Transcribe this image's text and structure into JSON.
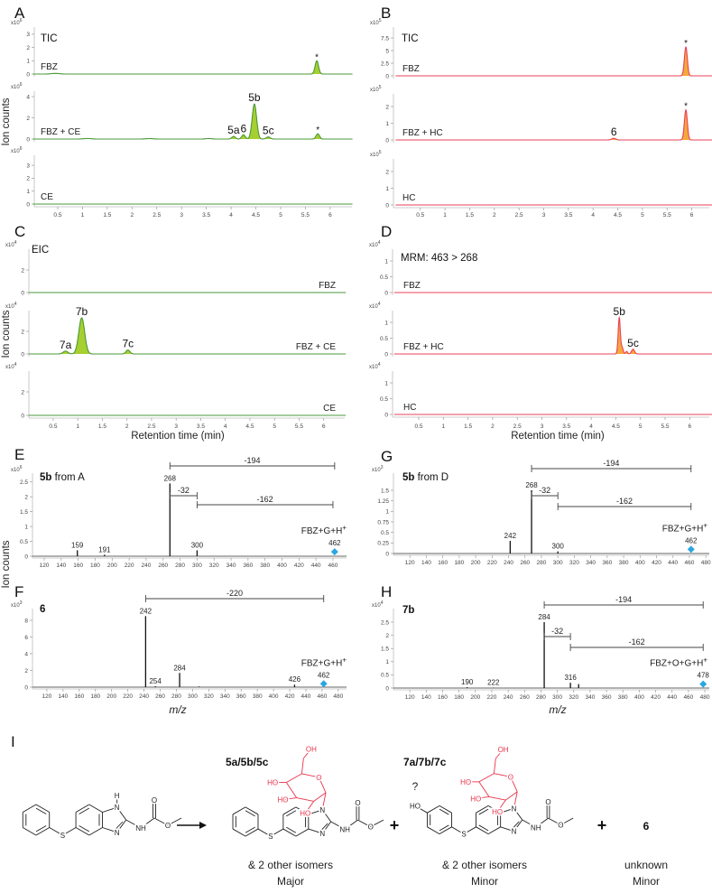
{
  "chart_data": [
    {
      "panel": "A",
      "type": "line",
      "title": "TIC",
      "xlabel": "",
      "ylabel": "Ion counts",
      "xlim": [
        0,
        6.45
      ],
      "xticks": [
        0.5,
        1,
        1.5,
        2,
        2.5,
        3,
        3.5,
        4,
        4.5,
        5,
        5.5,
        6
      ],
      "colors": {
        "line": "#4a9a3a",
        "fill": "#a6cf2f"
      },
      "traces": [
        {
          "name": "FBZ",
          "scale": "x10",
          "exp": "6",
          "yticks": [
            0,
            1,
            2,
            3
          ],
          "peaks": [
            {
              "rt": 0.45,
              "h": 0.05,
              "w": 0.08
            },
            {
              "rt": 5.73,
              "h": 1.0,
              "w": 0.035,
              "label": "*"
            }
          ]
        },
        {
          "name": "FBZ + CE",
          "scale": "x10",
          "exp": "6",
          "yticks": [
            0,
            2,
            4
          ],
          "peaks": [
            {
              "rt": 1.1,
              "h": 0.05,
              "w": 0.08
            },
            {
              "rt": 2.35,
              "h": 0.04,
              "w": 0.08
            },
            {
              "rt": 3.55,
              "h": 0.05,
              "w": 0.06
            },
            {
              "rt": 4.05,
              "h": 0.25,
              "w": 0.035,
              "label": "5a"
            },
            {
              "rt": 4.25,
              "h": 0.4,
              "w": 0.035,
              "label": "6"
            },
            {
              "rt": 4.47,
              "h": 3.3,
              "w": 0.045,
              "label": "5b"
            },
            {
              "rt": 4.75,
              "h": 0.2,
              "w": 0.04,
              "label": "5c"
            },
            {
              "rt": 5.75,
              "h": 0.5,
              "w": 0.035,
              "label": "*"
            }
          ]
        },
        {
          "name": "CE",
          "scale": "x10",
          "exp": "6",
          "yticks": [
            0,
            1,
            2,
            3
          ],
          "peaks": []
        }
      ]
    },
    {
      "panel": "B",
      "type": "line",
      "title": "TIC",
      "xlabel": "",
      "ylabel": "",
      "xlim": [
        0,
        6.45
      ],
      "xticks": [
        0.5,
        1,
        1.5,
        2,
        2.5,
        3,
        3.5,
        4,
        4.5,
        5,
        5.5,
        6
      ],
      "colors": {
        "line": "#e8405a",
        "fill": "#f5a83a"
      },
      "traces": [
        {
          "name": "FBZ",
          "scale": "x10",
          "exp": "5",
          "yticks": [
            0,
            2.5,
            5,
            7.5
          ],
          "peaks": [
            {
              "rt": 5.88,
              "h": 5.7,
              "w": 0.03,
              "label": "*"
            }
          ]
        },
        {
          "name": "FBZ + HC",
          "scale": "x10",
          "exp": "5",
          "yticks": [
            0,
            1,
            2
          ],
          "peaks": [
            {
              "rt": 4.42,
              "h": 0.1,
              "w": 0.04,
              "label": "6"
            },
            {
              "rt": 5.88,
              "h": 1.8,
              "w": 0.03,
              "label": "*"
            }
          ]
        },
        {
          "name": "HC",
          "scale": "x10",
          "exp": "5",
          "yticks": [
            0,
            1,
            2
          ],
          "peaks": []
        }
      ]
    },
    {
      "panel": "C",
      "type": "line",
      "title": "EIC",
      "xlabel": "Retention time (min)",
      "ylabel": "Ion counts",
      "xlim": [
        0,
        6.45
      ],
      "xticks": [
        0.5,
        1,
        1.5,
        2,
        2.5,
        3,
        3.5,
        4,
        4.5,
        5,
        5.5,
        6
      ],
      "colors": {
        "line": "#4a9a3a",
        "fill": "#a6cf2f"
      },
      "traces": [
        {
          "name": "FBZ",
          "scale": "x10",
          "exp": "4",
          "yticks": [
            0,
            2
          ],
          "peaks": []
        },
        {
          "name": "FBZ + CE",
          "scale": "x10",
          "exp": "4",
          "yticks": [
            0,
            2
          ],
          "peaks": [
            {
              "rt": 0.75,
              "h": 0.25,
              "w": 0.05,
              "label": "7a"
            },
            {
              "rt": 1.08,
              "h": 3.2,
              "w": 0.06,
              "label": "7b"
            },
            {
              "rt": 2.02,
              "h": 0.35,
              "w": 0.04,
              "label": "7c"
            }
          ]
        },
        {
          "name": "CE",
          "scale": "x10",
          "exp": "4",
          "yticks": [
            0,
            2
          ],
          "peaks": []
        }
      ]
    },
    {
      "panel": "D",
      "type": "line",
      "title": "MRM: 463 > 268",
      "xlabel": "Retention time (min)",
      "ylabel": "",
      "xlim": [
        0,
        6.45
      ],
      "xticks": [
        0.5,
        1,
        1.5,
        2,
        2.5,
        3,
        3.5,
        4,
        4.5,
        5,
        5.5,
        6
      ],
      "colors": {
        "line": "#e8405a",
        "fill": "#f5a83a"
      },
      "traces": [
        {
          "name": "FBZ",
          "scale": "x10",
          "exp": "4",
          "yticks": [
            0,
            0.5,
            1
          ],
          "peaks": []
        },
        {
          "name": "FBZ + HC",
          "scale": "x10",
          "exp": "4",
          "yticks": [
            0,
            0.5,
            1
          ],
          "peaks": [
            {
              "rt": 4.57,
              "h": 1.15,
              "w": 0.022,
              "label": "5b"
            },
            {
              "rt": 4.63,
              "h": 0.2,
              "w": 0.02
            },
            {
              "rt": 4.72,
              "h": 0.08,
              "w": 0.02
            },
            {
              "rt": 4.85,
              "h": 0.15,
              "w": 0.03,
              "label": "5c"
            }
          ]
        },
        {
          "name": "HC",
          "scale": "x10",
          "exp": "4",
          "yticks": [
            0,
            0.5,
            1
          ],
          "peaks": []
        }
      ]
    },
    {
      "panel": "E",
      "type": "bar",
      "compound": "5b",
      "compound_suffix": " from A",
      "xlabel": "",
      "ylabel": "Ion counts",
      "scale": "x10",
      "exp": "6",
      "xlim": [
        100,
        478
      ],
      "yticks": [
        0,
        0.5,
        1,
        1.5,
        2,
        2.5
      ],
      "xticks": [
        120,
        140,
        160,
        180,
        200,
        220,
        240,
        260,
        280,
        300,
        320,
        340,
        360,
        380,
        400,
        420,
        440,
        460
      ],
      "peaks": [
        {
          "mz": 159,
          "h": 0.2,
          "label": "159"
        },
        {
          "mz": 191,
          "h": 0.05,
          "label": "191"
        },
        {
          "mz": 268,
          "h": 2.45,
          "label": "268"
        },
        {
          "mz": 300,
          "h": 0.2,
          "label": "300"
        }
      ],
      "precursor": {
        "mz": 462,
        "h": 0.15,
        "label": "462",
        "formula": "FBZ+G+H",
        "charge": "+",
        "color": "#2aa6e0"
      },
      "brackets": [
        {
          "from": 268,
          "to": 462,
          "label": "-194"
        },
        {
          "from": 268,
          "to": 300,
          "label": "-32"
        },
        {
          "from": 300,
          "to": 460,
          "label": "-162"
        }
      ]
    },
    {
      "panel": "F",
      "type": "bar",
      "compound": "6",
      "compound_suffix": "",
      "xlabel": "m/z",
      "ylabel": "",
      "scale": "x10",
      "exp": "3",
      "xlim": [
        100,
        488
      ],
      "yticks": [
        0,
        2,
        4,
        6,
        8
      ],
      "xticks": [
        120,
        140,
        160,
        180,
        200,
        220,
        240,
        260,
        280,
        300,
        320,
        340,
        360,
        380,
        400,
        420,
        440,
        460,
        480
      ],
      "peaks": [
        {
          "mz": 242,
          "h": 8.5,
          "label": "242"
        },
        {
          "mz": 254,
          "h": 0.1,
          "label": "254"
        },
        {
          "mz": 284,
          "h": 1.7,
          "label": "284"
        },
        {
          "mz": 308,
          "h": 0.08
        },
        {
          "mz": 426,
          "h": 0.3,
          "label": "426"
        }
      ],
      "precursor": {
        "mz": 462,
        "h": 0.4,
        "label": "462",
        "formula": "FBZ+G+H",
        "charge": "+",
        "color": "#2aa6e0"
      },
      "brackets": [
        {
          "from": 242,
          "to": 462,
          "label": "-220"
        }
      ]
    },
    {
      "panel": "G",
      "type": "bar",
      "compound": "5b",
      "compound_suffix": " from D",
      "xlabel": "",
      "ylabel": "",
      "scale": "x10",
      "exp": "3",
      "xlim": [
        100,
        488
      ],
      "yticks": [
        0,
        0.25,
        0.5,
        0.75,
        1,
        1.25,
        1.5
      ],
      "xticks": [
        120,
        140,
        160,
        180,
        200,
        220,
        240,
        260,
        280,
        300,
        320,
        340,
        360,
        380,
        400,
        420,
        440,
        460,
        480
      ],
      "peaks": [
        {
          "mz": 242,
          "h": 0.3,
          "label": "242"
        },
        {
          "mz": 268,
          "h": 1.5,
          "label": "268"
        },
        {
          "mz": 300,
          "h": 0.05,
          "label": "300"
        }
      ],
      "precursor": {
        "mz": 462,
        "h": 0.1,
        "label": "462",
        "formula": "FBZ+G+H",
        "charge": "+",
        "color": "#2aa6e0"
      },
      "brackets": [
        {
          "from": 268,
          "to": 462,
          "label": "-194"
        },
        {
          "from": 268,
          "to": 300,
          "label": "-32"
        },
        {
          "from": 300,
          "to": 462,
          "label": "-162"
        }
      ]
    },
    {
      "panel": "H",
      "type": "bar",
      "compound": "7b",
      "compound_suffix": "",
      "xlabel": "m/z",
      "ylabel": "",
      "scale": "x10",
      "exp": "4",
      "xlim": [
        100,
        488
      ],
      "yticks": [
        0,
        0.5,
        1,
        1.5,
        2,
        2.5
      ],
      "xticks": [
        120,
        140,
        160,
        180,
        200,
        220,
        240,
        260,
        280,
        300,
        320,
        340,
        360,
        380,
        400,
        420,
        440,
        460,
        480
      ],
      "peaks": [
        {
          "mz": 190,
          "h": 0.03,
          "label": "190"
        },
        {
          "mz": 222,
          "h": 0.01,
          "label": "222"
        },
        {
          "mz": 284,
          "h": 2.5,
          "label": "284"
        },
        {
          "mz": 316,
          "h": 0.2,
          "label": "316"
        },
        {
          "mz": 326,
          "h": 0.15
        }
      ],
      "precursor": {
        "mz": 478,
        "h": 0.15,
        "label": "478",
        "formula": "FBZ+O+G+H",
        "charge": "+",
        "color": "#2aa6e0"
      },
      "brackets": [
        {
          "from": 284,
          "to": 478,
          "label": "-194"
        },
        {
          "from": 284,
          "to": 316,
          "label": "-32"
        },
        {
          "from": 316,
          "to": 478,
          "label": "-162"
        }
      ]
    }
  ],
  "scheme": {
    "panel": "I",
    "plus": "+",
    "products": [
      {
        "label": "5a/5b/5c",
        "note": "& 2 other isomers",
        "abundance": "Major"
      },
      {
        "label": "7a/7b/7c",
        "note": "& 2 other isomers",
        "abundance": "Minor",
        "uncertain": "?"
      },
      {
        "label": "6",
        "note": "unknown",
        "abundance": "Minor"
      }
    ],
    "atoms": {
      "fbz": [
        "H",
        "N",
        "N",
        "NH",
        "O",
        "O",
        "S"
      ],
      "glucose": [
        "OH",
        "HO",
        "HO",
        "HO",
        "O"
      ],
      "hydroxy": "HO"
    },
    "colors": {
      "glucose": "#e8334a",
      "bonds": "#222222"
    }
  }
}
